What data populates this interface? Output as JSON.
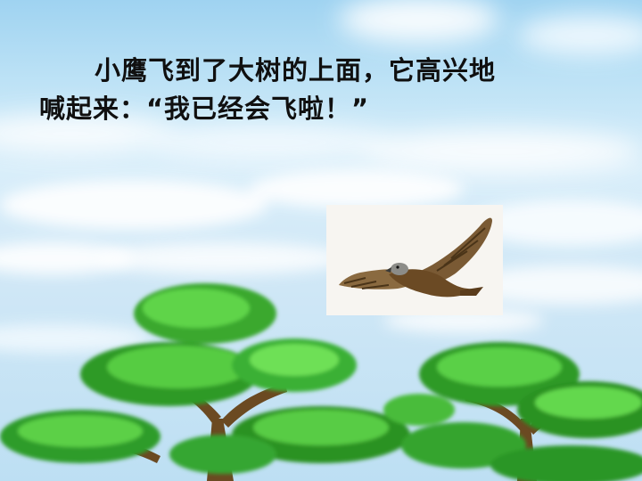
{
  "story": {
    "line1": "小鹰飞到了大树的上面，它高兴地",
    "line2": "喊起来：“我已经会飞啦！”"
  },
  "scene": {
    "sky_color": "#bfe3f6",
    "foliage_color": "#43c43a",
    "trunk_color": "#6b4a22",
    "bird_color": "#7a5a34"
  }
}
